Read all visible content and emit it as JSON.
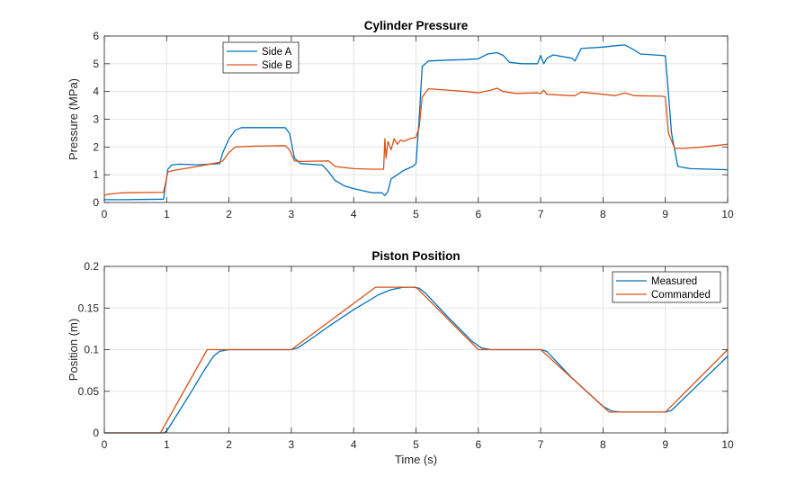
{
  "chart_data": [
    {
      "type": "line",
      "title": "Cylinder Pressure",
      "xlabel": "",
      "ylabel": "Pressure (MPa)",
      "xlim": [
        0,
        10
      ],
      "ylim": [
        0,
        6
      ],
      "xticks": [
        0,
        1,
        2,
        3,
        4,
        5,
        6,
        7,
        8,
        9,
        10
      ],
      "yticks": [
        0,
        1,
        2,
        3,
        4,
        5,
        6
      ],
      "grid": true,
      "legend_position": "top-left",
      "series": [
        {
          "name": "Side A",
          "color": "#0072BD",
          "x": [
            0,
            0.3,
            0.95,
            0.98,
            1.02,
            1.08,
            1.2,
            1.5,
            1.85,
            1.9,
            2.0,
            2.1,
            2.2,
            2.4,
            2.9,
            2.97,
            3.05,
            3.15,
            3.5,
            3.6,
            3.7,
            3.85,
            4.0,
            4.3,
            4.45,
            4.5,
            4.55,
            4.6,
            4.7,
            4.8,
            4.95,
            5.0,
            5.05,
            5.1,
            5.2,
            5.5,
            5.8,
            6.0,
            6.15,
            6.3,
            6.4,
            6.5,
            6.7,
            6.95,
            7.0,
            7.05,
            7.1,
            7.2,
            7.5,
            7.55,
            7.65,
            8.0,
            8.2,
            8.35,
            8.5,
            8.6,
            8.95,
            9.0,
            9.03,
            9.1,
            9.2,
            9.4,
            10.0
          ],
          "y": [
            0.1,
            0.1,
            0.12,
            0.6,
            1.2,
            1.35,
            1.38,
            1.36,
            1.4,
            1.8,
            2.3,
            2.6,
            2.7,
            2.7,
            2.7,
            2.5,
            1.6,
            1.4,
            1.35,
            1.1,
            0.8,
            0.6,
            0.5,
            0.35,
            0.35,
            0.25,
            0.4,
            0.85,
            1.0,
            1.15,
            1.3,
            1.4,
            3.0,
            4.9,
            5.1,
            5.13,
            5.15,
            5.18,
            5.35,
            5.4,
            5.3,
            5.05,
            5.0,
            5.0,
            5.3,
            5.0,
            5.2,
            5.32,
            5.2,
            5.1,
            5.55,
            5.6,
            5.65,
            5.68,
            5.5,
            5.35,
            5.3,
            5.28,
            4.5,
            2.5,
            1.3,
            1.22,
            1.18
          ]
        },
        {
          "name": "Side B",
          "color": "#D95319",
          "x": [
            0,
            0.05,
            0.3,
            0.95,
            1.02,
            1.1,
            1.5,
            1.85,
            1.9,
            2.0,
            2.1,
            2.4,
            2.9,
            2.97,
            3.05,
            3.15,
            3.6,
            3.7,
            4.0,
            4.3,
            4.48,
            4.5,
            4.52,
            4.55,
            4.6,
            4.65,
            4.7,
            4.75,
            4.8,
            4.9,
            5.0,
            5.05,
            5.1,
            5.2,
            5.5,
            5.8,
            6.0,
            6.2,
            6.3,
            6.4,
            6.6,
            6.95,
            7.0,
            7.05,
            7.1,
            7.5,
            7.55,
            7.65,
            8.0,
            8.2,
            8.35,
            8.5,
            8.95,
            9.0,
            9.05,
            9.15,
            9.3,
            9.6,
            10.0
          ],
          "y": [
            0.25,
            0.3,
            0.35,
            0.37,
            1.1,
            1.15,
            1.3,
            1.45,
            1.5,
            1.8,
            2.0,
            2.03,
            2.05,
            1.9,
            1.5,
            1.48,
            1.5,
            1.3,
            1.22,
            1.2,
            1.2,
            2.3,
            1.6,
            2.2,
            1.9,
            2.3,
            2.1,
            2.25,
            2.2,
            2.3,
            2.35,
            2.7,
            3.8,
            4.1,
            4.05,
            4.0,
            3.95,
            4.05,
            4.12,
            4.0,
            3.93,
            3.95,
            3.92,
            4.05,
            3.9,
            3.85,
            3.85,
            3.98,
            3.9,
            3.85,
            3.95,
            3.85,
            3.83,
            3.8,
            2.5,
            1.95,
            1.95,
            2.0,
            2.1
          ]
        }
      ]
    },
    {
      "type": "line",
      "title": "Piston Position",
      "xlabel": "Time (s)",
      "ylabel": "Position (m)",
      "xlim": [
        0,
        10
      ],
      "ylim": [
        0,
        0.2
      ],
      "xticks": [
        0,
        1,
        2,
        3,
        4,
        5,
        6,
        7,
        8,
        9,
        10
      ],
      "yticks": [
        0,
        0.05,
        0.1,
        0.15,
        0.2
      ],
      "ytick_labels": [
        "0",
        "0.05",
        "0.1",
        "0.15",
        "0.2"
      ],
      "grid": true,
      "legend_position": "top-right",
      "series": [
        {
          "name": "Measured",
          "color": "#0072BD",
          "x": [
            0,
            0.95,
            1.0,
            1.15,
            1.4,
            1.6,
            1.75,
            1.85,
            2.0,
            3.0,
            3.1,
            3.3,
            3.6,
            4.0,
            4.4,
            4.6,
            4.8,
            4.95,
            5.05,
            5.15,
            5.5,
            5.9,
            6.05,
            6.2,
            7.0,
            7.1,
            7.5,
            8.0,
            8.15,
            8.3,
            9.0,
            9.1,
            9.5,
            10.0
          ],
          "y": [
            0,
            0,
            0.002,
            0.02,
            0.05,
            0.075,
            0.092,
            0.098,
            0.1,
            0.1,
            0.102,
            0.112,
            0.128,
            0.148,
            0.166,
            0.172,
            0.175,
            0.175,
            0.174,
            0.168,
            0.14,
            0.11,
            0.102,
            0.1,
            0.1,
            0.098,
            0.066,
            0.032,
            0.026,
            0.025,
            0.025,
            0.027,
            0.056,
            0.092
          ]
        },
        {
          "name": "Commanded",
          "color": "#D95319",
          "x": [
            0,
            0.9,
            1.65,
            3.0,
            4.35,
            5.0,
            6.0,
            7.0,
            8.1,
            9.0,
            10.0
          ],
          "y": [
            0,
            0,
            0.1,
            0.1,
            0.175,
            0.175,
            0.1,
            0.1,
            0.025,
            0.025,
            0.1
          ]
        }
      ]
    }
  ]
}
